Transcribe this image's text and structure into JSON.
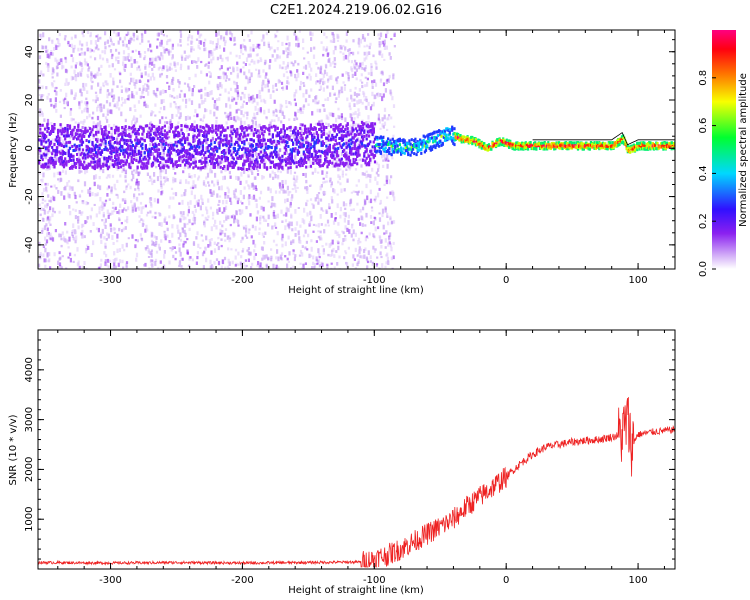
{
  "chart_data": [
    {
      "type": "heatmap",
      "title": "C2E1.2024.219.06.02.G16",
      "xlabel": "Height of straight line (km)",
      "ylabel": "Frequency (Hz)",
      "xlim": [
        -355,
        128
      ],
      "ylim": [
        -50,
        49
      ],
      "x_ticks": [
        "-300",
        "-200",
        "-100",
        "0",
        "100"
      ],
      "y_ticks": [
        "40",
        "20",
        "0",
        "-20",
        "-40"
      ],
      "grid": false,
      "colorbar": {
        "label": "Normalized spectral amplitude",
        "range": [
          0.0,
          1.0
        ],
        "ticks": [
          "0.0",
          "0.2",
          "0.4",
          "0.6",
          "0.8"
        ],
        "colormap": [
          "#ffffff",
          "#b07cf0",
          "#7a10f0",
          "#2020ff",
          "#00d8ff",
          "#00ff40",
          "#f8ff00",
          "#ff8000",
          "#ff0000",
          "#ff0080"
        ]
      },
      "ridge": {
        "description_free_points_x": [
          -350,
          -300,
          -250,
          -200,
          -150,
          -110,
          -90,
          -75,
          -60,
          -45,
          -35,
          -25,
          -15,
          -5,
          5,
          20,
          40,
          60,
          80,
          88,
          92,
          100,
          128
        ],
        "description_free_points_y": [
          1,
          0,
          1,
          0,
          1,
          2,
          1,
          0,
          2,
          6,
          4,
          3,
          0,
          3,
          1,
          1,
          1,
          1,
          1,
          4,
          -1,
          1,
          1
        ]
      }
    },
    {
      "type": "line",
      "title": "",
      "xlabel": "Height of straight line (km)",
      "ylabel": "SNR (10 * v/v)",
      "xlim": [
        -355,
        128
      ],
      "ylim": [
        0,
        4800
      ],
      "x_ticks": [
        "-300",
        "-200",
        "-100",
        "0",
        "100"
      ],
      "y_ticks": [
        "1000",
        "2000",
        "3000",
        "4000"
      ],
      "grid": false,
      "series": [
        {
          "color": "#ee2222",
          "x": [
            -355,
            -300,
            -250,
            -200,
            -150,
            -110,
            -100,
            -90,
            -80,
            -70,
            -60,
            -50,
            -40,
            -30,
            -20,
            -10,
            0,
            10,
            20,
            30,
            40,
            50,
            60,
            70,
            80,
            88,
            92,
            95,
            100,
            110,
            128
          ],
          "y": [
            130,
            120,
            130,
            120,
            130,
            140,
            200,
            280,
            400,
            550,
            700,
            850,
            1000,
            1250,
            1450,
            1650,
            1850,
            2100,
            2300,
            2450,
            2500,
            2550,
            2580,
            2600,
            2650,
            2700,
            3000,
            2500,
            2700,
            2750,
            2800
          ]
        }
      ]
    }
  ]
}
